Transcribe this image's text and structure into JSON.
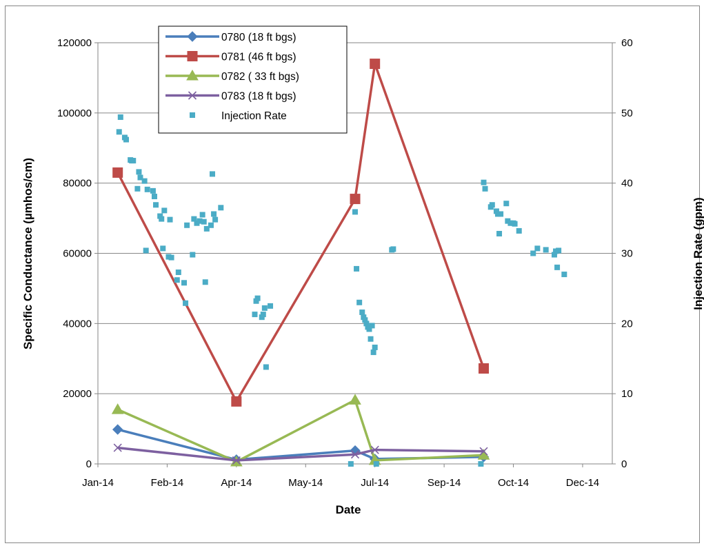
{
  "chart_data": {
    "type": "line",
    "title": "",
    "xlabel": "Date",
    "ylabel": "Specific Conductance (µmhos/cm)",
    "y2label": "Injection Rate (gpm)",
    "x_axis": {
      "min": "2014-01-01",
      "max": "2014-12-31",
      "tick_dates": [
        "2014-01-01",
        "2014-02-19",
        "2014-04-09",
        "2014-05-28",
        "2014-07-16",
        "2014-09-03",
        "2014-10-22",
        "2014-12-10"
      ],
      "tick_labels": [
        "Jan-14",
        "Feb-14",
        "Apr-14",
        "May-14",
        "Jul-14",
        "Sep-14",
        "Oct-14",
        "Dec-14"
      ]
    },
    "ylim": [
      0,
      120000
    ],
    "yticks": [
      0,
      20000,
      40000,
      60000,
      80000,
      100000,
      120000
    ],
    "y2lim": [
      0,
      60
    ],
    "y2ticks": [
      0,
      10,
      20,
      30,
      40,
      50,
      60
    ],
    "grid": "horizontal major gridlines",
    "legend_position": "top-left",
    "series": [
      {
        "name": "0780 (18 ft bgs)",
        "axis": "left",
        "color": "#4a7ebb",
        "marker": "diamond",
        "points": [
          {
            "x": "2014-01-15",
            "y": 9800
          },
          {
            "x": "2014-04-09",
            "y": 1200
          },
          {
            "x": "2014-07-02",
            "y": 3800
          },
          {
            "x": "2014-07-16",
            "y": 1400
          },
          {
            "x": "2014-10-01",
            "y": 2000
          }
        ]
      },
      {
        "name": "0781 (46 ft bgs)",
        "axis": "left",
        "color": "#be4b48",
        "marker": "square",
        "points": [
          {
            "x": "2014-01-15",
            "y": 83000
          },
          {
            "x": "2014-04-09",
            "y": 17800
          },
          {
            "x": "2014-07-02",
            "y": 75500
          },
          {
            "x": "2014-07-16",
            "y": 114000
          },
          {
            "x": "2014-10-01",
            "y": 27200
          }
        ]
      },
      {
        "name": "0782 ( 33 ft bgs)",
        "axis": "left",
        "color": "#98b954",
        "marker": "triangle",
        "points": [
          {
            "x": "2014-01-15",
            "y": 15500
          },
          {
            "x": "2014-04-09",
            "y": 600
          },
          {
            "x": "2014-07-02",
            "y": 18200
          },
          {
            "x": "2014-07-16",
            "y": 1000
          },
          {
            "x": "2014-10-01",
            "y": 2500
          }
        ]
      },
      {
        "name": "0783 (18 ft bgs)",
        "axis": "left",
        "color": "#7d60a0",
        "marker": "x",
        "points": [
          {
            "x": "2014-01-15",
            "y": 4600
          },
          {
            "x": "2014-04-09",
            "y": 1000
          },
          {
            "x": "2014-07-02",
            "y": 2700
          },
          {
            "x": "2014-07-16",
            "y": 4000
          },
          {
            "x": "2014-10-01",
            "y": 3600
          }
        ]
      },
      {
        "name": "Injection Rate",
        "axis": "right",
        "color": "#4bacc6",
        "marker": "small-square",
        "line": false,
        "points": [
          {
            "x": "2014-01-16",
            "y": 47.3
          },
          {
            "x": "2014-01-17",
            "y": 49.4
          },
          {
            "x": "2014-01-20",
            "y": 46.5
          },
          {
            "x": "2014-01-21",
            "y": 46.2
          },
          {
            "x": "2014-01-24",
            "y": 43.3
          },
          {
            "x": "2014-01-25",
            "y": 43.2
          },
          {
            "x": "2014-01-26",
            "y": 43.2
          },
          {
            "x": "2014-01-29",
            "y": 39.2
          },
          {
            "x": "2014-01-30",
            "y": 41.6
          },
          {
            "x": "2014-01-31",
            "y": 40.8
          },
          {
            "x": "2014-02-03",
            "y": 40.3
          },
          {
            "x": "2014-02-04",
            "y": 30.4
          },
          {
            "x": "2014-02-05",
            "y": 39.1
          },
          {
            "x": "2014-02-09",
            "y": 38.9
          },
          {
            "x": "2014-02-10",
            "y": 38.1
          },
          {
            "x": "2014-02-11",
            "y": 36.9
          },
          {
            "x": "2014-02-14",
            "y": 35.3
          },
          {
            "x": "2014-02-15",
            "y": 34.9
          },
          {
            "x": "2014-02-16",
            "y": 30.7
          },
          {
            "x": "2014-02-17",
            "y": 36.1
          },
          {
            "x": "2014-02-20",
            "y": 29.5
          },
          {
            "x": "2014-02-21",
            "y": 34.8
          },
          {
            "x": "2014-02-22",
            "y": 29.4
          },
          {
            "x": "2014-02-26",
            "y": 26.2
          },
          {
            "x": "2014-02-27",
            "y": 27.3
          },
          {
            "x": "2014-03-03",
            "y": 25.8
          },
          {
            "x": "2014-03-04",
            "y": 22.9
          },
          {
            "x": "2014-03-05",
            "y": 34.0
          },
          {
            "x": "2014-03-09",
            "y": 29.8
          },
          {
            "x": "2014-03-10",
            "y": 34.9
          },
          {
            "x": "2014-03-12",
            "y": 34.3
          },
          {
            "x": "2014-03-14",
            "y": 34.6
          },
          {
            "x": "2014-03-16",
            "y": 35.5
          },
          {
            "x": "2014-03-17",
            "y": 34.5
          },
          {
            "x": "2014-03-18",
            "y": 25.9
          },
          {
            "x": "2014-03-19",
            "y": 33.5
          },
          {
            "x": "2014-03-22",
            "y": 34.0
          },
          {
            "x": "2014-03-23",
            "y": 41.3
          },
          {
            "x": "2014-03-24",
            "y": 35.6
          },
          {
            "x": "2014-03-25",
            "y": 34.8
          },
          {
            "x": "2014-03-29",
            "y": 36.5
          },
          {
            "x": "2014-04-22",
            "y": 21.3
          },
          {
            "x": "2014-04-23",
            "y": 23.2
          },
          {
            "x": "2014-04-24",
            "y": 23.6
          },
          {
            "x": "2014-04-27",
            "y": 20.9
          },
          {
            "x": "2014-04-28",
            "y": 21.3
          },
          {
            "x": "2014-04-29",
            "y": 22.2
          },
          {
            "x": "2014-04-30",
            "y": 13.8
          },
          {
            "x": "2014-05-03",
            "y": 22.5
          },
          {
            "x": "2014-06-29",
            "y": 0.0
          },
          {
            "x": "2014-07-02",
            "y": 35.9
          },
          {
            "x": "2014-07-03",
            "y": 27.8
          },
          {
            "x": "2014-07-05",
            "y": 23.0
          },
          {
            "x": "2014-07-07",
            "y": 21.6
          },
          {
            "x": "2014-07-08",
            "y": 20.9
          },
          {
            "x": "2014-07-09",
            "y": 20.5
          },
          {
            "x": "2014-07-10",
            "y": 20.0
          },
          {
            "x": "2014-07-11",
            "y": 19.5
          },
          {
            "x": "2014-07-12",
            "y": 19.2
          },
          {
            "x": "2014-07-13",
            "y": 17.8
          },
          {
            "x": "2014-07-14",
            "y": 19.7
          },
          {
            "x": "2014-07-15",
            "y": 15.9
          },
          {
            "x": "2014-07-16",
            "y": 16.6
          },
          {
            "x": "2014-07-17",
            "y": 0.0
          },
          {
            "x": "2014-07-28",
            "y": 30.5
          },
          {
            "x": "2014-07-29",
            "y": 30.6
          },
          {
            "x": "2014-09-29",
            "y": 0.0
          },
          {
            "x": "2014-10-01",
            "y": 40.1
          },
          {
            "x": "2014-10-02",
            "y": 39.2
          },
          {
            "x": "2014-10-06",
            "y": 36.6
          },
          {
            "x": "2014-10-07",
            "y": 36.9
          },
          {
            "x": "2014-10-10",
            "y": 36.0
          },
          {
            "x": "2014-10-11",
            "y": 35.6
          },
          {
            "x": "2014-10-12",
            "y": 32.8
          },
          {
            "x": "2014-10-13",
            "y": 35.6
          },
          {
            "x": "2014-10-17",
            "y": 37.1
          },
          {
            "x": "2014-10-18",
            "y": 34.6
          },
          {
            "x": "2014-10-20",
            "y": 34.3
          },
          {
            "x": "2014-10-22",
            "y": 34.3
          },
          {
            "x": "2014-10-23",
            "y": 34.2
          },
          {
            "x": "2014-10-26",
            "y": 33.2
          },
          {
            "x": "2014-11-05",
            "y": 30.0
          },
          {
            "x": "2014-11-08",
            "y": 30.7
          },
          {
            "x": "2014-11-14",
            "y": 30.5
          },
          {
            "x": "2014-11-20",
            "y": 29.8
          },
          {
            "x": "2014-11-21",
            "y": 30.3
          },
          {
            "x": "2014-11-22",
            "y": 28.0
          },
          {
            "x": "2014-11-23",
            "y": 30.4
          },
          {
            "x": "2014-11-27",
            "y": 27.0
          }
        ]
      }
    ]
  }
}
